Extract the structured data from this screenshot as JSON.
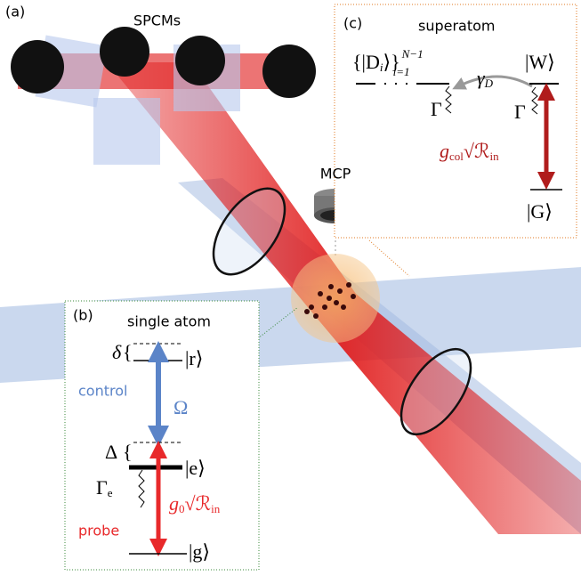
{
  "panel_a": {
    "label": "(a)",
    "spcm_label": "SPCMs",
    "mcp_label": "MCP"
  },
  "panel_b": {
    "label": "(b)",
    "title": "single atom",
    "control": "control",
    "probe": "probe",
    "omega": "Ω",
    "delta": "δ",
    "Delta": "Δ",
    "brace": "{",
    "level_r": "|r⟩",
    "level_e": "|e⟩",
    "level_g": "|g⟩",
    "gamma_e": {
      "main": "Γ",
      "sub": "e"
    },
    "coupling": {
      "main": "g",
      "sub": "0",
      "root": "√ℛ",
      "root_sub": "in"
    }
  },
  "panel_c": {
    "label": "(c)",
    "title": "superatom",
    "dark_states": {
      "open": "{|D",
      "index": "i",
      "close": "⟩}",
      "sup": "N−1",
      "sub": "i=1"
    },
    "level_W": "|W⟩",
    "level_G": "|G⟩",
    "gamma_left": "Γ",
    "gamma_right": "Γ",
    "gamma_d": {
      "main": "γ",
      "sub": "D"
    },
    "coupling": {
      "main": "g",
      "sub": "col",
      "root": "√ℛ",
      "root_sub": "in"
    }
  }
}
